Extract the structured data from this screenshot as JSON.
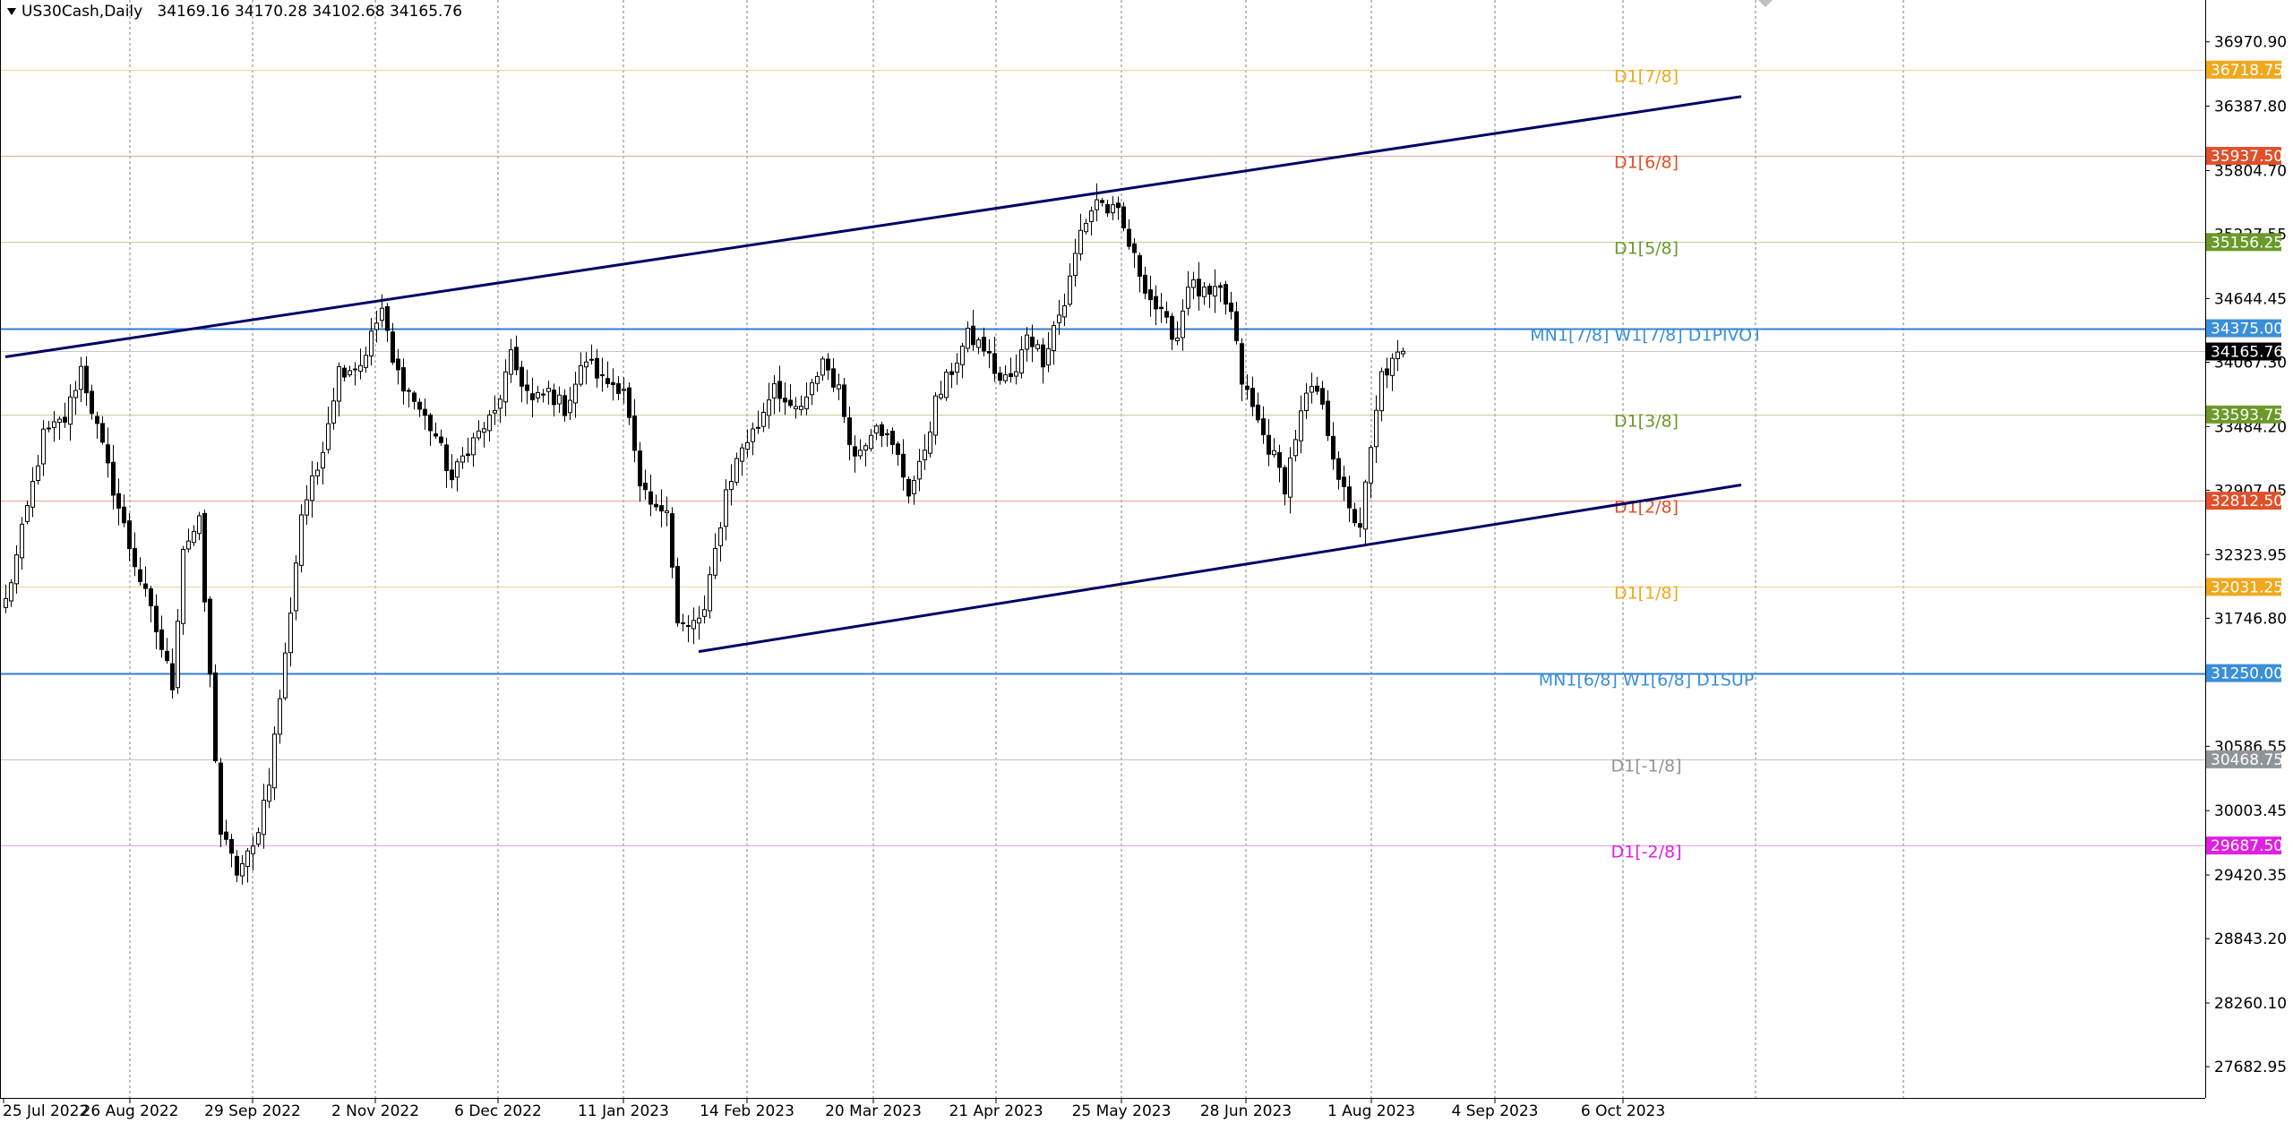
{
  "header": {
    "symbol_label": "US30Cash,Daily",
    "ohlc_label": "34169.16 34170.28 34102.68 34165.76"
  },
  "colors": {
    "background": "#ffffff",
    "grid": "#7f7f7f",
    "candle": "#000000",
    "trendline": "#000066",
    "blue_level": "#2f7fd6",
    "price_tag": "#000000"
  },
  "chart_data": {
    "type": "candlestick",
    "title": "US30Cash,Daily",
    "ylim": [
      27400,
      37350
    ],
    "y_ticks": [
      36970.9,
      36387.8,
      35804.7,
      35227.55,
      34644.45,
      34067.3,
      33484.2,
      32907.05,
      32323.95,
      31746.8,
      30586.55,
      30003.45,
      29420.35,
      28843.2,
      28260.1,
      27682.95
    ],
    "x_ticks": [
      "25 Jul 2022",
      "26 Aug 2022",
      "29 Sep 2022",
      "2 Nov 2022",
      "6 Dec 2022",
      "11 Jan 2023",
      "14 Feb 2023",
      "20 Mar 2023",
      "21 Apr 2023",
      "25 May 2023",
      "28 Jun 2023",
      "1 Aug 2023",
      "4 Sep 2023",
      "6 Oct 2023"
    ],
    "current_price": {
      "value": 34165.76,
      "label": "34165.76"
    },
    "levels": [
      {
        "value": 36718.75,
        "tag": "36718.75",
        "label": "D1[7/8]",
        "color": "#f0a81c",
        "line": "#f0d29a",
        "width": 1
      },
      {
        "value": 35937.5,
        "tag": "35937.50",
        "label": "D1[6/8]",
        "color": "#e0502a",
        "line": "#eba596",
        "width": 1
      },
      {
        "value": 35156.25,
        "tag": "35156.25",
        "label": "D1[5/8]",
        "color": "#6b9a2a",
        "line": "#c3d19f",
        "width": 1
      },
      {
        "value": 34375.0,
        "tag": "34375.00",
        "label": "MN1[7/8] W1[7/8] D1PIVOT",
        "color": "#3a8fd8",
        "line": "#2f7fd6",
        "width": 2
      },
      {
        "value": 33593.75,
        "tag": "33593.75",
        "label": "D1[3/8]",
        "color": "#6b9a2a",
        "line": "#c3d19f",
        "width": 1
      },
      {
        "value": 32812.5,
        "tag": "32812.50",
        "label": "D1[2/8]",
        "color": "#e0502a",
        "line": "#eba596",
        "width": 1
      },
      {
        "value": 32031.25,
        "tag": "32031.25",
        "label": "D1[1/8]",
        "color": "#f0a81c",
        "line": "#f0d29a",
        "width": 1
      },
      {
        "value": 31250.0,
        "tag": "31250.00",
        "label": "MN1[6/8] W1[6/8] D1SUP",
        "color": "#3a8fd8",
        "line": "#2f7fd6",
        "width": 2
      },
      {
        "value": 30468.75,
        "tag": "30468.75",
        "label": "D1[-1/8]",
        "color": "#8f949a",
        "line": "#c0c3c6",
        "width": 1
      },
      {
        "value": 29687.5,
        "tag": "29687.50",
        "label": "D1[-2/8]",
        "color": "#e020e0",
        "line": "#e9a0e9",
        "width": 1
      }
    ],
    "trendlines": [
      {
        "name": "upper",
        "from": {
          "bar": 0,
          "price": 34116
        },
        "to": {
          "bar": 323,
          "price": 36475
        }
      },
      {
        "name": "lower",
        "from": {
          "bar": 129,
          "price": 31445
        },
        "to": {
          "bar": 323,
          "price": 32955
        }
      }
    ],
    "keypoints": [
      [
        0,
        31900
      ],
      [
        2,
        32300
      ],
      [
        7,
        33400
      ],
      [
        11,
        33550
      ],
      [
        14,
        34016
      ],
      [
        19,
        33100
      ],
      [
        23,
        32400
      ],
      [
        27,
        31800
      ],
      [
        31,
        31150
      ],
      [
        33,
        32400
      ],
      [
        36,
        32600
      ],
      [
        40,
        29800
      ],
      [
        43,
        29450
      ],
      [
        46,
        29650
      ],
      [
        49,
        30300
      ],
      [
        52,
        31400
      ],
      [
        55,
        32700
      ],
      [
        58,
        33100
      ],
      [
        62,
        34000
      ],
      [
        66,
        34050
      ],
      [
        70,
        34550
      ],
      [
        72,
        34050
      ],
      [
        75,
        33800
      ],
      [
        80,
        33400
      ],
      [
        83,
        33000
      ],
      [
        86,
        33300
      ],
      [
        91,
        33600
      ],
      [
        94,
        34100
      ],
      [
        98,
        33700
      ],
      [
        101,
        33800
      ],
      [
        104,
        33650
      ],
      [
        108,
        34100
      ],
      [
        111,
        33900
      ],
      [
        115,
        33850
      ],
      [
        118,
        32900
      ],
      [
        121,
        32700
      ],
      [
        123,
        32800
      ],
      [
        125,
        31700
      ],
      [
        127,
        31650
      ],
      [
        130,
        31800
      ],
      [
        132,
        32350
      ],
      [
        134,
        32900
      ],
      [
        137,
        33300
      ],
      [
        140,
        33500
      ],
      [
        143,
        33900
      ],
      [
        146,
        33600
      ],
      [
        149,
        33700
      ],
      [
        152,
        34100
      ],
      [
        155,
        33800
      ],
      [
        158,
        33200
      ],
      [
        162,
        33550
      ],
      [
        166,
        33200
      ],
      [
        168,
        32900
      ],
      [
        170,
        33100
      ],
      [
        173,
        33700
      ],
      [
        176,
        34000
      ],
      [
        179,
        34300
      ],
      [
        182,
        34200
      ],
      [
        185,
        33900
      ],
      [
        188,
        33950
      ],
      [
        190,
        34350
      ],
      [
        193,
        34100
      ],
      [
        195,
        34400
      ],
      [
        197,
        34600
      ],
      [
        200,
        35250
      ],
      [
        203,
        35550
      ],
      [
        205,
        35450
      ],
      [
        207,
        35400
      ],
      [
        210,
        35000
      ],
      [
        213,
        34650
      ],
      [
        216,
        34400
      ],
      [
        218,
        34300
      ],
      [
        220,
        34800
      ],
      [
        222,
        34700
      ],
      [
        224,
        34650
      ],
      [
        226,
        34700
      ],
      [
        228,
        34500
      ],
      [
        230,
        33900
      ],
      [
        232,
        33650
      ],
      [
        234,
        33400
      ],
      [
        236,
        33200
      ],
      [
        238,
        32950
      ],
      [
        240,
        33400
      ],
      [
        242,
        33750
      ],
      [
        244,
        33800
      ],
      [
        246,
        33450
      ],
      [
        248,
        33050
      ],
      [
        250,
        32700
      ],
      [
        252,
        32600
      ],
      [
        254,
        33250
      ],
      [
        256,
        33950
      ],
      [
        258,
        34050
      ],
      [
        260,
        34165.76
      ]
    ],
    "bar_count": 324
  }
}
